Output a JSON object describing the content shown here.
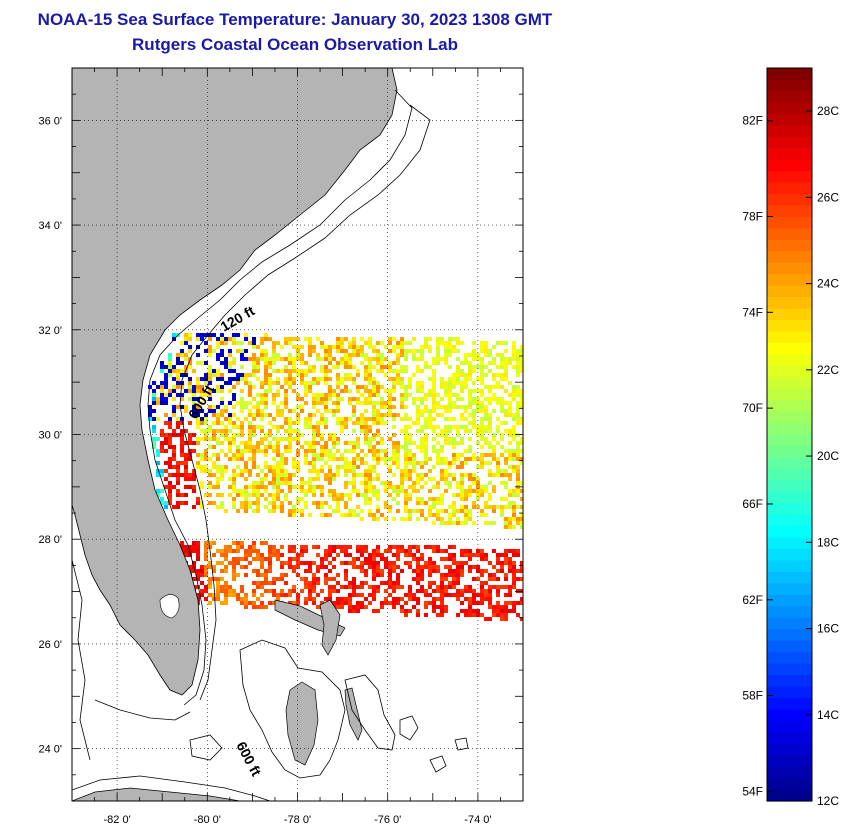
{
  "title": {
    "line1": "NOAA-15 Sea Surface Temperature:  January 30, 2023 1308 GMT",
    "line2": "Rutgers Coastal Ocean Observation Lab"
  },
  "map": {
    "lat_range": [
      23,
      37
    ],
    "lon_range": [
      -83,
      -73
    ],
    "lat_ticks": [
      {
        "value": 36,
        "label": "36 0'"
      },
      {
        "value": 34,
        "label": "34 0'"
      },
      {
        "value": 32,
        "label": "32 0'"
      },
      {
        "value": 30,
        "label": "30 0'"
      },
      {
        "value": 28,
        "label": "28 0'"
      },
      {
        "value": 26,
        "label": "26 0'"
      },
      {
        "value": 24,
        "label": "24 0'"
      }
    ],
    "lon_ticks": [
      {
        "value": -82,
        "label": "-82 0'"
      },
      {
        "value": -80,
        "label": "-80 0'"
      },
      {
        "value": -78,
        "label": "-78 0'"
      },
      {
        "value": -76,
        "label": "-76 0'"
      },
      {
        "value": -74,
        "label": "-74 0'"
      }
    ],
    "contour_labels": [
      "120 ft",
      "600 ft",
      "600 ft"
    ],
    "land_color": "#b4b4b4",
    "grid": true
  },
  "colorbar": {
    "min_c": 12,
    "max_c": 29,
    "fahrenheit_labels": [
      "82F",
      "78F",
      "74F",
      "70F",
      "66F",
      "62F",
      "58F",
      "54F"
    ],
    "celsius_labels": [
      "28C",
      "26C",
      "24C",
      "22C",
      "20C",
      "18C",
      "16C",
      "14C",
      "12C"
    ],
    "colormap": "jet"
  }
}
